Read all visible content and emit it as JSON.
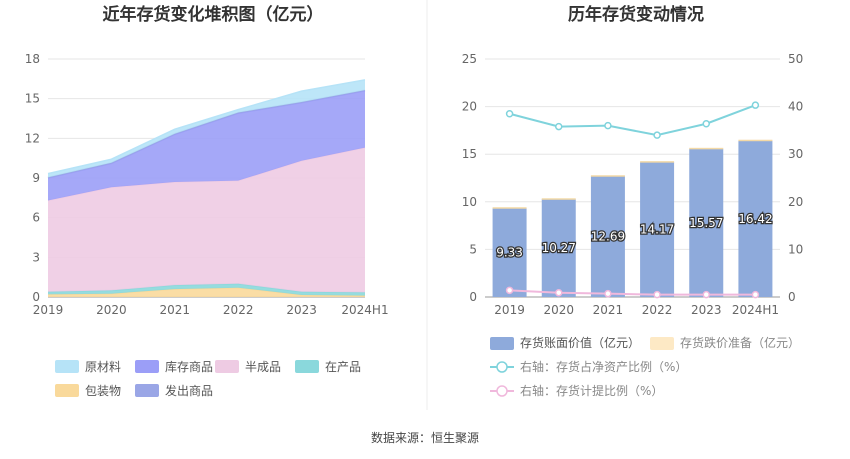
{
  "left_chart_title": "近年存货变化堆积图（亿元）",
  "right_chart_title": "历年存货变动情况",
  "source": "数据来源：恒生聚源",
  "chart_data": [
    {
      "type": "area",
      "stacked": true,
      "title": "近年存货变化堆积图（亿元）",
      "categories": [
        "2019",
        "2020",
        "2021",
        "2022",
        "2023",
        "2024H1"
      ],
      "ylim": [
        0,
        18
      ],
      "yticks": [
        "0",
        "3",
        "6",
        "9",
        "12",
        "15",
        "18"
      ],
      "grid": true,
      "legend_position": "bottom",
      "series": [
        {
          "name": "包装物",
          "color": "#f9d99b",
          "values": [
            0.2,
            0.25,
            0.6,
            0.7,
            0.15,
            0.1
          ]
        },
        {
          "name": "在产品",
          "color": "#8ad8dc",
          "values": [
            0.2,
            0.25,
            0.3,
            0.3,
            0.25,
            0.25
          ]
        },
        {
          "name": "半成品",
          "color": "#eecbe3",
          "values": [
            6.9,
            7.8,
            7.8,
            7.8,
            9.9,
            10.95
          ]
        },
        {
          "name": "库存商品",
          "color": "#9b9ef7",
          "values": [
            1.7,
            1.8,
            3.6,
            5.1,
            4.4,
            4.3
          ]
        },
        {
          "name": "发出商品",
          "color": "#9aa6e6",
          "values": [
            0.05,
            0.05,
            0.05,
            0.05,
            0.05,
            0.05
          ]
        },
        {
          "name": "原材料",
          "color": "#b6e3f7",
          "values": [
            0.28,
            0.27,
            0.34,
            0.22,
            0.82,
            0.77
          ]
        }
      ],
      "legend_order": [
        "原材料",
        "库存商品",
        "半成品",
        "在产品",
        "包装物",
        "发出商品"
      ]
    },
    {
      "type": "bar",
      "title": "历年存货变动情况",
      "categories": [
        "2019",
        "2020",
        "2021",
        "2022",
        "2023",
        "2024H1"
      ],
      "ylim": [
        0,
        25
      ],
      "yticks": [
        "0",
        "5",
        "10",
        "15",
        "20",
        "25"
      ],
      "y2lim": [
        0,
        50
      ],
      "y2ticks": [
        "0",
        "10",
        "20",
        "30",
        "40",
        "50"
      ],
      "grid": true,
      "legend_position": "bottom",
      "series": [
        {
          "name": "存货账面价值（亿元）",
          "axis": "left",
          "kind": "bar",
          "color": "#8eaadb",
          "values": [
            9.33,
            10.27,
            12.69,
            14.17,
            15.57,
            16.42
          ],
          "labels": [
            "9.33",
            "10.27",
            "12.69",
            "14.17",
            "15.57",
            "16.42"
          ]
        },
        {
          "name": "存货跌价准备（亿元）",
          "axis": "left",
          "kind": "bar",
          "color": "#fde9c5",
          "values": [
            0.1,
            0.1,
            0.1,
            0.1,
            0.1,
            0.1
          ]
        },
        {
          "name": "右轴：存货占净资产比例（%）",
          "axis": "right",
          "kind": "line",
          "color": "#7fd3dc",
          "values": [
            38.5,
            35.8,
            36.0,
            34.0,
            36.4,
            40.3
          ]
        },
        {
          "name": "右轴：存货计提比例（%）",
          "axis": "right",
          "kind": "line",
          "color": "#f0b8dc",
          "values": [
            1.4,
            0.9,
            0.7,
            0.5,
            0.5,
            0.5
          ]
        }
      ]
    }
  ]
}
